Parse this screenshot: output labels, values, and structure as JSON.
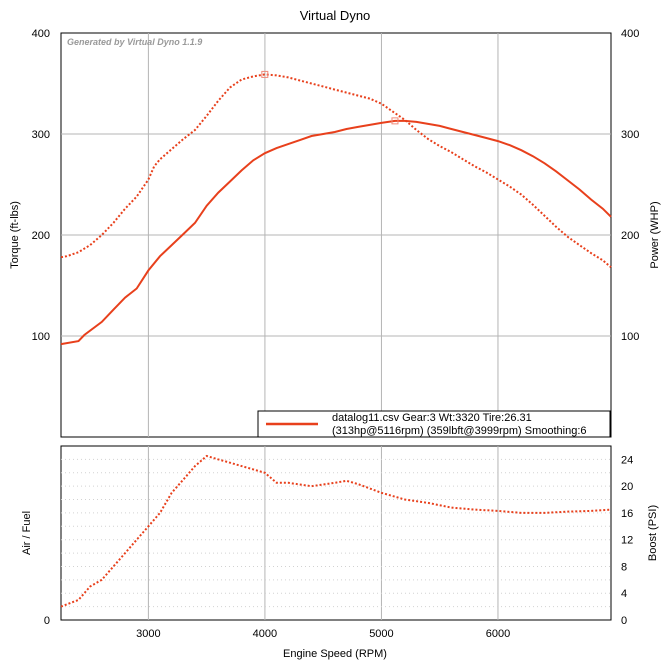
{
  "title": "Virtual Dyno",
  "watermark": "Generated by Virtual Dyno 1.1.9",
  "colors": {
    "series": "#e8401c",
    "peak_marker": "#f08a7a",
    "grid": "#b4b4b4",
    "minor_grid": "#d2d2d2"
  },
  "chart_data": [
    {
      "type": "line",
      "title": "Virtual Dyno",
      "xlabel": "",
      "ylabel": "Torque (ft-lbs)",
      "ylabel_right": "Power (WHP)",
      "xlim": [
        2250,
        6970
      ],
      "ylim": [
        0,
        400
      ],
      "ylim_right": [
        0,
        400
      ],
      "x_ticks": [
        3000,
        4000,
        5000,
        6000
      ],
      "y_ticks": [
        100,
        200,
        300,
        400
      ],
      "y_ticks_right": [
        100,
        200,
        300,
        400
      ],
      "grid": true,
      "legend_position": "bottom-right",
      "legend": {
        "line1": "datalog11.csv Gear:3 Wt:3320 Tire:26.31",
        "line2": "(313hp@5116rpm) (359lbft@3999rpm) Smoothing:6"
      },
      "series": [
        {
          "name": "Power (WHP)",
          "style": "solid",
          "points": [
            [
              2250,
              92
            ],
            [
              2400,
              95
            ],
            [
              2450,
              101
            ],
            [
              2600,
              114
            ],
            [
              2700,
              126
            ],
            [
              2800,
              138
            ],
            [
              2900,
              147
            ],
            [
              3000,
              165
            ],
            [
              3100,
              179
            ],
            [
              3200,
              190
            ],
            [
              3300,
              201
            ],
            [
              3400,
              212
            ],
            [
              3500,
              229
            ],
            [
              3600,
              242
            ],
            [
              3700,
              253
            ],
            [
              3800,
              264
            ],
            [
              3900,
              274
            ],
            [
              4000,
              281
            ],
            [
              4100,
              286
            ],
            [
              4200,
              290
            ],
            [
              4300,
              294
            ],
            [
              4400,
              298
            ],
            [
              4500,
              300
            ],
            [
              4600,
              302
            ],
            [
              4700,
              305
            ],
            [
              4800,
              307
            ],
            [
              4900,
              309
            ],
            [
              5000,
              311
            ],
            [
              5116,
              313
            ],
            [
              5200,
              313
            ],
            [
              5300,
              312
            ],
            [
              5400,
              310
            ],
            [
              5500,
              308
            ],
            [
              5600,
              305
            ],
            [
              5700,
              302
            ],
            [
              5800,
              299
            ],
            [
              5900,
              296
            ],
            [
              6000,
              293
            ],
            [
              6100,
              289
            ],
            [
              6200,
              284
            ],
            [
              6300,
              278
            ],
            [
              6400,
              271
            ],
            [
              6500,
              263
            ],
            [
              6600,
              254
            ],
            [
              6700,
              245
            ],
            [
              6800,
              235
            ],
            [
              6900,
              226
            ],
            [
              6970,
              218
            ]
          ],
          "peak": [
            5116,
            313
          ]
        },
        {
          "name": "Torque (ft-lbs)",
          "style": "dotted",
          "points": [
            [
              2250,
              178
            ],
            [
              2300,
              179
            ],
            [
              2400,
              183
            ],
            [
              2500,
              190
            ],
            [
              2600,
              200
            ],
            [
              2700,
              212
            ],
            [
              2800,
              226
            ],
            [
              2900,
              238
            ],
            [
              3000,
              255
            ],
            [
              3050,
              268
            ],
            [
              3100,
              275
            ],
            [
              3200,
              285
            ],
            [
              3300,
              295
            ],
            [
              3400,
              304
            ],
            [
              3500,
              318
            ],
            [
              3600,
              333
            ],
            [
              3700,
              346
            ],
            [
              3800,
              354
            ],
            [
              3900,
              357
            ],
            [
              3999,
              359
            ],
            [
              4100,
              358
            ],
            [
              4200,
              356
            ],
            [
              4300,
              353
            ],
            [
              4400,
              350
            ],
            [
              4500,
              347
            ],
            [
              4600,
              344
            ],
            [
              4700,
              341
            ],
            [
              4800,
              338
            ],
            [
              4900,
              335
            ],
            [
              5000,
              330
            ],
            [
              5100,
              322
            ],
            [
              5200,
              314
            ],
            [
              5300,
              304
            ],
            [
              5400,
              295
            ],
            [
              5500,
              288
            ],
            [
              5600,
              282
            ],
            [
              5700,
              275
            ],
            [
              5800,
              268
            ],
            [
              5900,
              262
            ],
            [
              6000,
              255
            ],
            [
              6100,
              248
            ],
            [
              6200,
              240
            ],
            [
              6300,
              230
            ],
            [
              6400,
              219
            ],
            [
              6500,
              208
            ],
            [
              6600,
              198
            ],
            [
              6700,
              190
            ],
            [
              6800,
              182
            ],
            [
              6900,
              175
            ],
            [
              6970,
              168
            ]
          ],
          "peak": [
            3999,
            359
          ]
        }
      ]
    },
    {
      "type": "line",
      "xlabel": "Engine Speed (RPM)",
      "ylabel": "Air / Fuel",
      "ylabel_right": "Boost (PSI)",
      "xlim": [
        2250,
        6970
      ],
      "ylim_left": [
        0,
        1
      ],
      "left_ticks": [
        0
      ],
      "ylim": [
        0,
        26
      ],
      "x_ticks": [
        3000,
        4000,
        5000,
        6000
      ],
      "y_ticks_right": [
        0,
        4,
        8,
        12,
        16,
        20,
        24
      ],
      "grid": true,
      "series": [
        {
          "name": "Boost (PSI)",
          "style": "dotted",
          "points": [
            [
              2250,
              2
            ],
            [
              2400,
              3
            ],
            [
              2500,
              5
            ],
            [
              2600,
              6
            ],
            [
              2700,
              8
            ],
            [
              2800,
              10
            ],
            [
              2900,
              12
            ],
            [
              3000,
              14
            ],
            [
              3100,
              16
            ],
            [
              3200,
              19
            ],
            [
              3300,
              21
            ],
            [
              3400,
              23
            ],
            [
              3500,
              24.5
            ],
            [
              3600,
              24
            ],
            [
              3700,
              23.5
            ],
            [
              3800,
              23
            ],
            [
              3900,
              22.5
            ],
            [
              4000,
              22
            ],
            [
              4100,
              20.5
            ],
            [
              4200,
              20.5
            ],
            [
              4400,
              20
            ],
            [
              4600,
              20.5
            ],
            [
              4700,
              20.8
            ],
            [
              4800,
              20.3
            ],
            [
              5000,
              19
            ],
            [
              5200,
              18
            ],
            [
              5400,
              17.5
            ],
            [
              5600,
              16.8
            ],
            [
              5800,
              16.5
            ],
            [
              6000,
              16.3
            ],
            [
              6200,
              16
            ],
            [
              6400,
              16
            ],
            [
              6600,
              16.2
            ],
            [
              6800,
              16.3
            ],
            [
              6970,
              16.5
            ]
          ]
        }
      ]
    }
  ],
  "left_tick_labels": {
    "top": [
      "100",
      "200",
      "300",
      "400"
    ],
    "bottom": [
      "0"
    ]
  }
}
